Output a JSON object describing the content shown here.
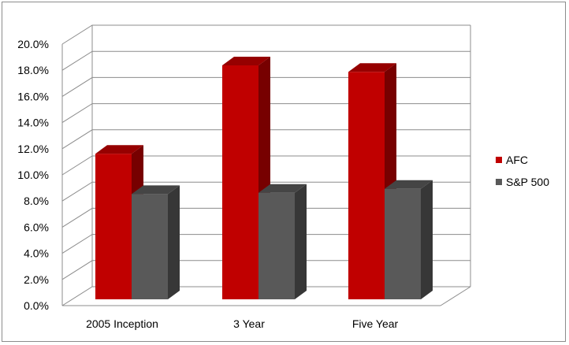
{
  "chart_data": {
    "type": "bar",
    "style": "3d-clustered-column",
    "categories": [
      "2005 Inception",
      "3 Year",
      "Five Year"
    ],
    "series": [
      {
        "name": "AFC",
        "values": [
          11.2,
          18.0,
          17.5
        ],
        "color": "#c00000"
      },
      {
        "name": "S&P 500",
        "values": [
          8.1,
          8.2,
          8.5
        ],
        "color": "#595959"
      }
    ],
    "y_ticks": [
      "0.0%",
      "2.0%",
      "4.0%",
      "6.0%",
      "8.0%",
      "10.0%",
      "12.0%",
      "14.0%",
      "16.0%",
      "18.0%",
      "20.0%"
    ],
    "ylim": [
      0,
      20
    ],
    "grid": true,
    "legend": "right"
  }
}
